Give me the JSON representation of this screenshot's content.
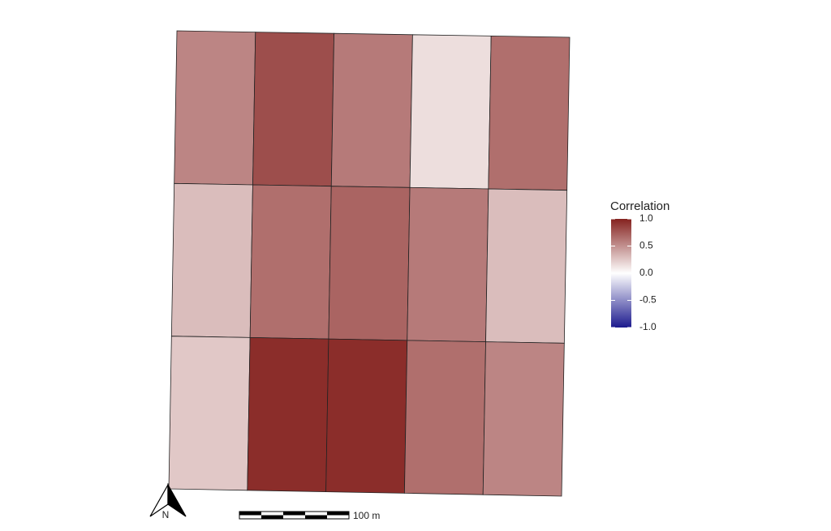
{
  "chart_data": {
    "type": "heatmap",
    "values": [
      [
        0.55,
        0.8,
        0.6,
        0.15,
        0.65
      ],
      [
        0.3,
        0.65,
        0.7,
        0.6,
        0.3
      ],
      [
        0.25,
        0.95,
        0.95,
        0.65,
        0.55
      ]
    ],
    "legend_title": "Correlation",
    "clim": [
      -1,
      1
    ],
    "colors": {
      "low": "#1c1a8e",
      "mid": "#ffffff",
      "high": "#85221f"
    },
    "colorbar_ticks": [
      {
        "value": 1,
        "label": "1.0"
      },
      0.5,
      {
        "value": 0,
        "label": "0.0"
      },
      -0.5,
      {
        "value": -1,
        "label": "-1.0"
      }
    ],
    "scale_bar_label": "100 m",
    "north_label": "N"
  }
}
